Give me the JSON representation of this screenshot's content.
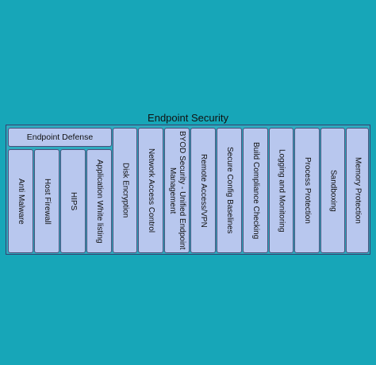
{
  "title": "Endpoint Security",
  "group_header": "Endpoint Defense",
  "defense_items": [
    "Anti Malware",
    "Host Firewall",
    "HIPS",
    "Application White listing"
  ],
  "columns": [
    "Disk Encryption",
    "Network Access Control",
    "BYOD Security - Unified Endpoint Management",
    "Remote Access/VPN",
    "Secure Config Baselines",
    "Build Compliance Checking",
    "Logging and Monitoring",
    "Process Protection",
    "Sandboxing",
    "Memory Protection"
  ],
  "colors": {
    "background": "#17a6b8",
    "box_fill": "#b8c7ee",
    "box_border": "#4a4f7a"
  }
}
